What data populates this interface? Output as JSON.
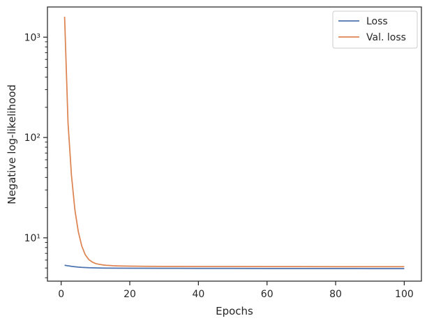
{
  "chart_data": {
    "type": "line",
    "title": "",
    "xlabel": "Epochs",
    "ylabel": "Negative log-likelihood",
    "xlim": [
      -4.0,
      105.0
    ],
    "ylim": [
      3.7,
      2000
    ],
    "yscale": "log",
    "xticks": [
      0,
      20,
      40,
      60,
      80,
      100
    ],
    "yticks_major": [
      10,
      100,
      1000
    ],
    "ytick_labels": [
      "10¹",
      "10²",
      "10³"
    ],
    "grid": false,
    "legend_position": "top-right",
    "series": [
      {
        "name": "Loss",
        "color": "#4c72b0",
        "x": [
          1,
          2,
          3,
          4,
          5,
          6,
          7,
          8,
          9,
          10,
          12,
          15,
          20,
          30,
          40,
          50,
          60,
          70,
          80,
          90,
          100
        ],
        "y": [
          5.33,
          5.26,
          5.2,
          5.15,
          5.11,
          5.08,
          5.06,
          5.04,
          5.03,
          5.02,
          5.0,
          4.99,
          4.98,
          4.97,
          4.96,
          4.96,
          4.95,
          4.95,
          4.95,
          4.94,
          4.94
        ]
      },
      {
        "name": "Val. loss",
        "color": "#dd8452",
        "x": [
          1,
          2,
          3,
          4,
          5,
          6,
          7,
          8,
          9,
          10,
          11,
          12,
          13,
          14,
          15,
          17,
          20,
          25,
          30,
          40,
          50,
          60,
          70,
          80,
          90,
          100
        ],
        "y": [
          1600,
          140,
          42,
          19,
          11.5,
          8.3,
          6.8,
          6.1,
          5.75,
          5.55,
          5.45,
          5.38,
          5.33,
          5.3,
          5.27,
          5.24,
          5.22,
          5.2,
          5.19,
          5.18,
          5.18,
          5.17,
          5.17,
          5.16,
          5.16,
          5.16
        ]
      }
    ]
  }
}
